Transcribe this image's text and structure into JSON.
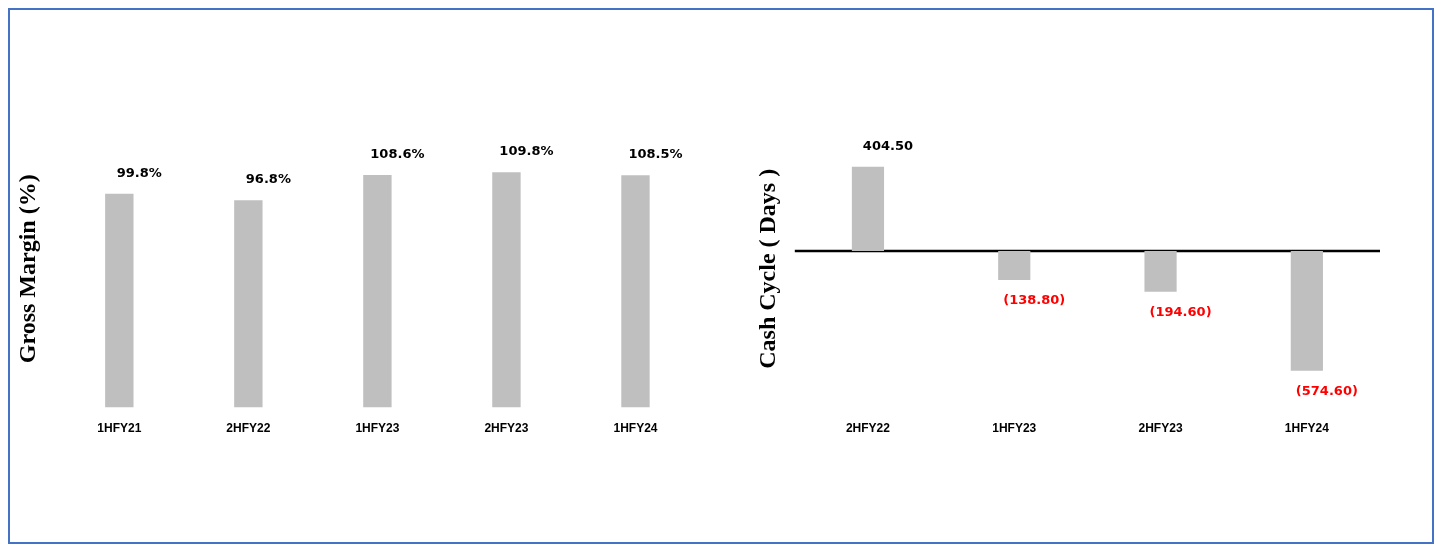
{
  "chart_data": [
    {
      "type": "bar",
      "ylabel": "Gross Margin (%)",
      "categories": [
        "1HFY21",
        "2HFY22",
        "1HFY23",
        "2HFY23",
        "1HFY24"
      ],
      "values": [
        99.8,
        96.8,
        108.6,
        109.8,
        108.5
      ],
      "value_labels": [
        "99.8%",
        "96.8%",
        "108.6%",
        "109.8%",
        "108.5%"
      ],
      "color": "#bfbfbf",
      "grid": false,
      "legend": false
    },
    {
      "type": "bar",
      "ylabel": "Cash Cycle ( Days )",
      "categories": [
        "2HFY22",
        "1HFY23",
        "2HFY23",
        "1HFY24"
      ],
      "values": [
        404.5,
        -138.8,
        -194.6,
        -574.6
      ],
      "value_labels": [
        "404.50",
        "(138.80)",
        "(194.60)",
        "(574.60)"
      ],
      "color": "#bfbfbf",
      "grid": false,
      "legend": false,
      "ref_lines": [
        {
          "axis": "y",
          "value": 0,
          "color": "#000000"
        }
      ]
    }
  ]
}
